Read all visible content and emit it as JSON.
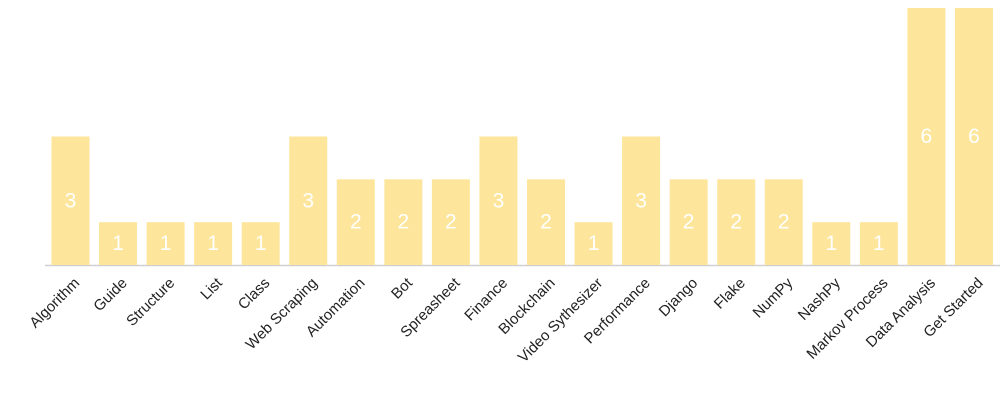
{
  "chart_data": {
    "type": "bar",
    "categories": [
      "Algorithm",
      "Guide",
      "Structure",
      "List",
      "Class",
      "Web Scraping",
      "Automation",
      "Bot",
      "Spreasheet",
      "Finance",
      "Blockchain",
      "Video Sythesizer",
      "Performance",
      "Django",
      "Flake",
      "NumPy",
      "NashPy",
      "Markov Process",
      "Data Analysis",
      "Get Started"
    ],
    "values": [
      3,
      1,
      1,
      1,
      1,
      3,
      2,
      2,
      2,
      3,
      2,
      1,
      3,
      2,
      2,
      2,
      1,
      1,
      6,
      6
    ],
    "color": "#fde69b",
    "label_color": "#ffffff"
  }
}
